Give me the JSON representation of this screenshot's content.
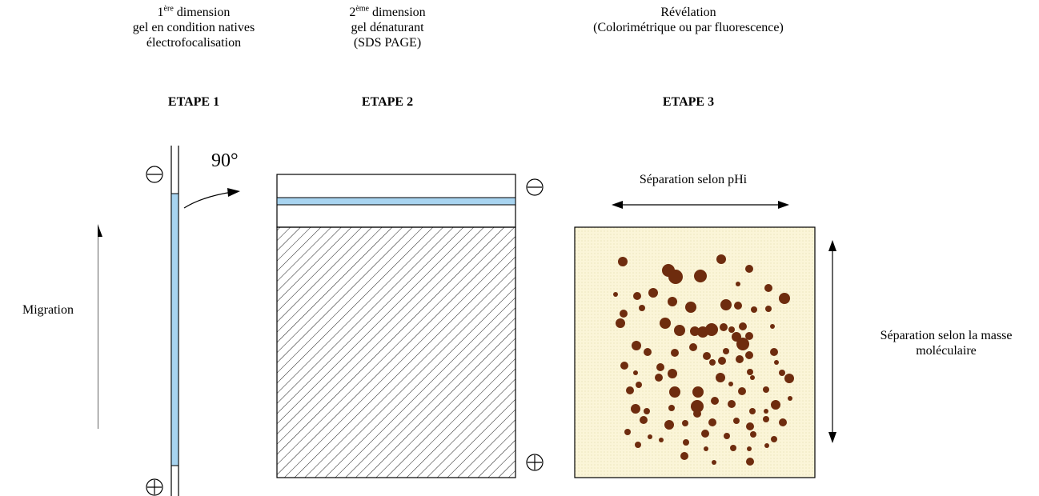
{
  "header": {
    "step1": {
      "num": "1",
      "sup": "ère",
      "word": " dimension",
      "line2": "gel en condition natives",
      "line3": "électrofocalisation",
      "etape": "ETAPE 1"
    },
    "step2": {
      "num": "2",
      "sup": "ème",
      "word": " dimension",
      "line2": "gel dénaturant",
      "line3": "(SDS  PAGE)",
      "etape": "ETAPE 2"
    },
    "step3": {
      "line1": "Révélation",
      "line2": "(Colorimétrique ou par fluorescence)",
      "etape": "ETAPE 3"
    }
  },
  "labels": {
    "rotation": "90°",
    "migration": "Migration",
    "separation_phi": "Séparation selon pHi",
    "separation_mass_line1": "Séparation selon la masse",
    "separation_mass_line2": "moléculaire"
  },
  "colors": {
    "gel_strip": "#a8d4f0",
    "spot": "#6e2c0e",
    "result_gel_bg": "#fbf5d8"
  },
  "electrodes": {
    "negative": "⊖",
    "positive": "⊕"
  }
}
